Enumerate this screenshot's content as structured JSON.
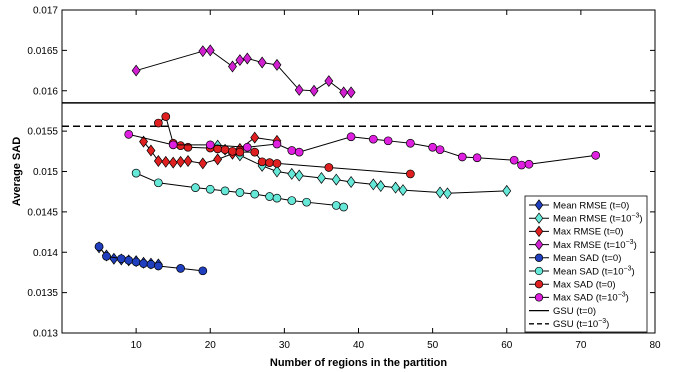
{
  "chart_data": {
    "type": "line",
    "title": "",
    "xlabel": "Number of regions in the partition",
    "ylabel": "Average SAD",
    "xlim": [
      0,
      80
    ],
    "ylim": [
      0.013,
      0.017
    ],
    "xticks": [
      10,
      20,
      30,
      40,
      50,
      60,
      70,
      80
    ],
    "yticks": [
      0.013,
      0.0135,
      0.014,
      0.0145,
      0.015,
      0.0155,
      0.016,
      0.0165,
      0.017
    ],
    "xtick_labels": [
      "10",
      "20",
      "30",
      "40",
      "50",
      "60",
      "70",
      "80"
    ],
    "ytick_labels": [
      "0.013",
      "0.0135",
      "0.014",
      "0.0145",
      "0.015",
      "0.0155",
      "0.016",
      "0.0165",
      "0.017"
    ],
    "grid": false,
    "legend_position": "right",
    "series": [
      {
        "name": "Mean RMSE (t=0)",
        "name_main": "Mean RMSE (t=0)",
        "name_sup": "",
        "marker": "diamond",
        "color": "#1f3fbf",
        "line": "solid",
        "x": [
          5,
          6,
          7,
          8,
          9,
          10,
          11,
          12,
          13
        ],
        "y": [
          0.01406,
          0.01396,
          0.01392,
          0.01391,
          0.0139,
          0.01389,
          0.01387,
          0.01386,
          0.01385
        ]
      },
      {
        "name": "Mean RMSE (t=10^-3)",
        "name_main": "Mean RMSE (t=10",
        "name_sup": "−3",
        "marker": "diamond",
        "color": "#66e8d8",
        "line": "solid",
        "x": [
          21,
          22,
          24,
          27,
          29,
          31,
          32,
          35,
          37,
          39,
          42,
          43,
          45,
          46,
          51,
          52,
          60
        ],
        "y": [
          0.01532,
          0.01527,
          0.0152,
          0.01507,
          0.015,
          0.01497,
          0.01495,
          0.01492,
          0.0149,
          0.01487,
          0.01484,
          0.01482,
          0.0148,
          0.01477,
          0.01474,
          0.01473,
          0.01476
        ]
      },
      {
        "name": "Max RMSE (t=0)",
        "name_main": "Max RMSE (t=0)",
        "name_sup": "",
        "marker": "diamond",
        "color": "#e02020",
        "line": "solid",
        "x": [
          11,
          12,
          13,
          14,
          15,
          16,
          17,
          19,
          21,
          23,
          24,
          26,
          29
        ],
        "y": [
          0.01537,
          0.01526,
          0.01513,
          0.01512,
          0.01511,
          0.01512,
          0.01513,
          0.0151,
          0.01515,
          0.01522,
          0.01528,
          0.01542,
          0.01538
        ]
      },
      {
        "name": "Max RMSE (t=10^-3)",
        "name_main": "Max RMSE (t=10",
        "name_sup": "−3",
        "marker": "diamond",
        "color": "#d020d0",
        "line": "solid",
        "x": [
          10,
          19,
          20,
          23,
          24,
          25,
          27,
          29,
          32,
          34,
          36,
          38,
          39
        ],
        "y": [
          0.01625,
          0.01649,
          0.0165,
          0.0163,
          0.01638,
          0.0164,
          0.01635,
          0.01632,
          0.01601,
          0.016,
          0.01612,
          0.01598,
          0.01598
        ]
      },
      {
        "name": "Mean SAD (t=0)",
        "name_main": "Mean SAD (t=0)",
        "name_sup": "",
        "marker": "circle",
        "color": "#1f3fbf",
        "line": "solid",
        "x": [
          5,
          6,
          8,
          9,
          10,
          11,
          12,
          13,
          16,
          19
        ],
        "y": [
          0.01407,
          0.01395,
          0.01392,
          0.0139,
          0.01388,
          0.01386,
          0.01385,
          0.01383,
          0.0138,
          0.01377
        ]
      },
      {
        "name": "Mean SAD (t=10^-3)",
        "name_main": "Mean SAD (t=10",
        "name_sup": "−3",
        "marker": "circle",
        "color": "#66e8d8",
        "line": "solid",
        "x": [
          10,
          13,
          18,
          20,
          22,
          24,
          26,
          28,
          29,
          31,
          33,
          37,
          38
        ],
        "y": [
          0.01498,
          0.01486,
          0.0148,
          0.01478,
          0.01476,
          0.01474,
          0.01472,
          0.01469,
          0.01467,
          0.01464,
          0.01462,
          0.01458,
          0.01456
        ]
      },
      {
        "name": "Max SAD (t=0)",
        "name_main": "Max SAD (t=0)",
        "name_sup": "",
        "marker": "circle",
        "color": "#e02020",
        "line": "solid",
        "x": [
          13,
          14,
          15,
          16,
          17,
          20,
          21,
          22,
          23,
          24,
          26,
          27,
          28,
          29,
          36,
          47
        ],
        "y": [
          0.0156,
          0.01568,
          0.01535,
          0.01532,
          0.0153,
          0.01529,
          0.01528,
          0.01527,
          0.01525,
          0.01524,
          0.01524,
          0.01512,
          0.01511,
          0.0151,
          0.01505,
          0.01497
        ]
      },
      {
        "name": "Max SAD (t=10^-3)",
        "name_main": "Max SAD (t=10",
        "name_sup": "−3",
        "marker": "circle",
        "color": "#e020e0",
        "line": "solid",
        "x": [
          9,
          15,
          20,
          25,
          29,
          31,
          32,
          39,
          42,
          44,
          47,
          50,
          51,
          54,
          56,
          61,
          62,
          63,
          72
        ],
        "y": [
          0.01546,
          0.01533,
          0.01533,
          0.0153,
          0.01534,
          0.01526,
          0.01524,
          0.01543,
          0.0154,
          0.01538,
          0.01535,
          0.0153,
          0.01527,
          0.01518,
          0.01517,
          0.01514,
          0.01508,
          0.01509,
          0.0152
        ]
      }
    ],
    "reference_lines": [
      {
        "name": "GSU (t=0)",
        "name_main": "GSU (t=0)",
        "name_sup": "",
        "y": 0.01585,
        "style": "solid",
        "color": "#000000"
      },
      {
        "name": "GSU (t=10^-3)",
        "name_main": "GSU (t=10",
        "name_sup": "−3",
        "y": 0.01556,
        "style": "dashed",
        "color": "#000000"
      }
    ]
  }
}
